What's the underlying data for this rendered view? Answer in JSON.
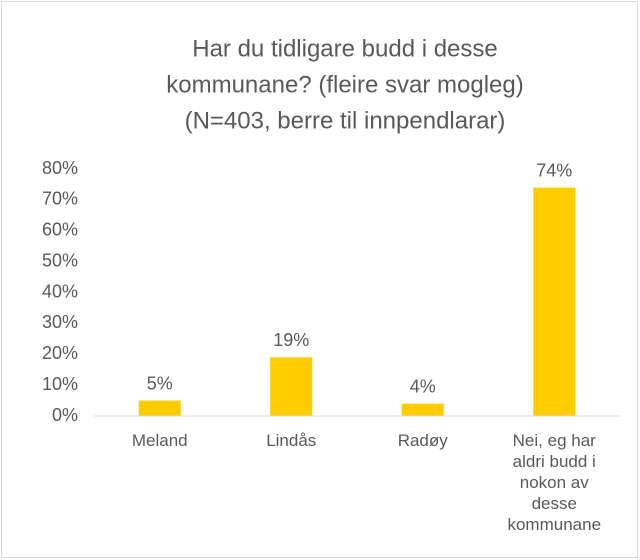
{
  "chart_data": {
    "type": "bar",
    "title": [
      "Har du tidligare budd i desse",
      "kommunane? (fleire svar mogleg)",
      "(N=403, berre til innpendlarar)"
    ],
    "categories": [
      "Meland",
      "Lindås",
      "Radøy",
      "Nei, eg har aldri budd i nokon av desse kommunane"
    ],
    "values": [
      5,
      19,
      4,
      74
    ],
    "value_labels": [
      "5%",
      "19%",
      "4%",
      "74%"
    ],
    "color": "#ffcc00",
    "ylim": [
      0,
      80
    ],
    "yticks": [
      {
        "value": 0,
        "label": "0%"
      },
      {
        "value": 10,
        "label": "10%"
      },
      {
        "value": 20,
        "label": "20%"
      },
      {
        "value": 30,
        "label": "30%"
      },
      {
        "value": 40,
        "label": "40%"
      },
      {
        "value": 50,
        "label": "50%"
      },
      {
        "value": 60,
        "label": "60%"
      },
      {
        "value": 70,
        "label": "70%"
      },
      {
        "value": 80,
        "label": "80%"
      }
    ],
    "grid": false
  }
}
